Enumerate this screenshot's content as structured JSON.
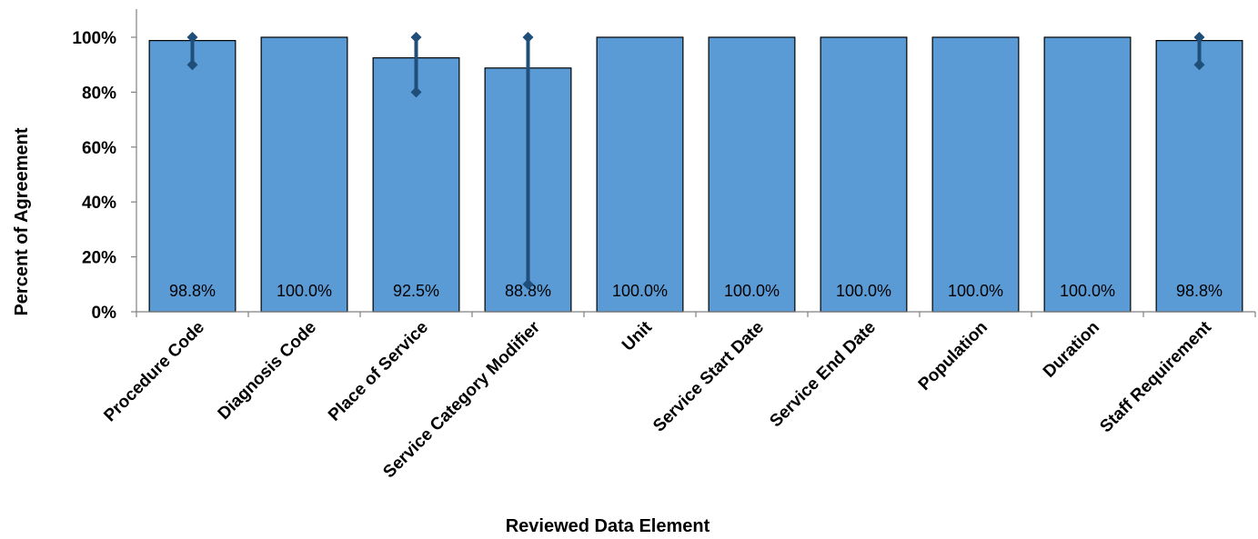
{
  "chart_data": {
    "type": "bar",
    "categories": [
      "Procedure Code",
      "Diagnosis Code",
      "Place of Service",
      "Service Category Modifier",
      "Unit",
      "Service Start Date",
      "Service End Date",
      "Population",
      "Duration",
      "Staff Requirement"
    ],
    "values": [
      98.8,
      100.0,
      92.5,
      88.8,
      100.0,
      100.0,
      100.0,
      100.0,
      100.0,
      98.8
    ],
    "data_labels": [
      "98.8%",
      "100.0%",
      "92.5%",
      "88.8%",
      "100.0%",
      "100.0%",
      "100.0%",
      "100.0%",
      "100.0%",
      "98.8%"
    ],
    "error_bars": [
      {
        "low": 90,
        "high": 100
      },
      null,
      {
        "low": 80,
        "high": 100
      },
      {
        "low": 10,
        "high": 100
      },
      null,
      null,
      null,
      null,
      null,
      {
        "low": 90,
        "high": 100
      }
    ],
    "title": "",
    "xlabel": "Reviewed Data Element",
    "ylabel": "Percent of Agreement",
    "ylim": [
      0,
      100
    ],
    "yticks": [
      0,
      20,
      40,
      60,
      80,
      100
    ],
    "ytick_labels": [
      "0%",
      "20%",
      "40%",
      "60%",
      "80%",
      "100%"
    ],
    "grid": false,
    "legend": "none",
    "colors": {
      "bar": "#5b9bd5",
      "error": "#1f4e79"
    }
  }
}
